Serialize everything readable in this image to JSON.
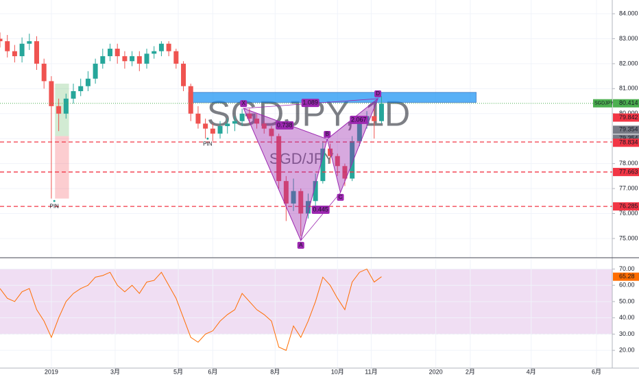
{
  "chart_data": [
    {
      "type": "candlestick",
      "title": "SGDJPY, 1D",
      "subtitle": "SGD/JPY",
      "symbol": "SGDJPY",
      "x": [
        -7,
        -6,
        -5,
        -4,
        -3,
        -2,
        -1,
        0,
        1,
        2,
        3,
        4,
        5,
        6,
        7,
        8,
        9,
        10,
        11,
        12,
        13,
        14,
        15,
        16,
        17,
        18,
        19,
        20,
        21,
        22,
        23,
        24,
        25,
        26,
        27,
        28,
        29,
        30,
        31,
        32,
        33,
        34,
        35,
        36,
        37,
        38,
        39,
        40,
        41,
        42,
        43,
        44,
        45
      ],
      "open": [
        83.0,
        82.9,
        82.5,
        82.3,
        82.8,
        82.9,
        82.0,
        81.3,
        80.3,
        80.0,
        80.6,
        80.9,
        81.1,
        81.4,
        82.0,
        82.3,
        82.6,
        82.3,
        82.1,
        82.3,
        82.0,
        82.4,
        82.5,
        82.8,
        82.5,
        82.0,
        81.1,
        80.0,
        79.6,
        79.4,
        79.2,
        79.5,
        79.6,
        79.7,
        80.0,
        79.8,
        79.6,
        79.4,
        79.1,
        77.3,
        76.4,
        76.9,
        76.0,
        76.5,
        77.3,
        78.6,
        78.3,
        77.9,
        77.4,
        78.9,
        79.6,
        79.9,
        79.7
      ],
      "high": [
        83.25,
        83.15,
        82.75,
        83.05,
        83.2,
        83.1,
        82.2,
        81.5,
        80.6,
        80.8,
        81.2,
        81.4,
        81.7,
        82.2,
        82.6,
        82.8,
        82.8,
        82.5,
        82.5,
        82.5,
        82.6,
        82.7,
        82.9,
        82.9,
        82.6,
        82.1,
        81.2,
        80.3,
        79.8,
        79.6,
        79.7,
        79.8,
        79.9,
        80.2,
        80.2,
        80.0,
        79.7,
        79.5,
        79.2,
        77.5,
        77.4,
        77.0,
        76.8,
        77.6,
        78.9,
        78.8,
        78.4,
        78.0,
        79.1,
        79.8,
        80.1,
        80.2,
        80.7
      ],
      "low": [
        82.65,
        82.25,
        82.05,
        82.05,
        82.55,
        81.75,
        81.0,
        76.6,
        79.3,
        79.8,
        80.4,
        80.7,
        80.9,
        81.2,
        81.8,
        82.1,
        82.0,
        81.8,
        81.9,
        81.7,
        81.8,
        82.2,
        82.3,
        82.3,
        81.8,
        80.9,
        79.7,
        79.4,
        79.0,
        78.9,
        79.0,
        79.2,
        79.3,
        79.5,
        79.6,
        79.4,
        79.2,
        78.8,
        77.0,
        75.7,
        76.1,
        75.1,
        75.8,
        76.3,
        77.2,
        78.0,
        77.5,
        77.1,
        77.3,
        78.7,
        79.4,
        79.0,
        79.6
      ],
      "close": [
        82.9,
        82.5,
        82.3,
        82.8,
        82.9,
        82.0,
        81.3,
        80.3,
        80.0,
        80.6,
        80.9,
        81.1,
        81.4,
        82.0,
        82.3,
        82.6,
        82.3,
        82.1,
        82.3,
        82.0,
        82.4,
        82.5,
        82.8,
        82.5,
        82.0,
        81.1,
        80.0,
        79.6,
        79.4,
        79.2,
        79.5,
        79.6,
        79.7,
        80.0,
        79.8,
        79.6,
        79.4,
        79.1,
        77.3,
        76.4,
        76.9,
        76.0,
        76.5,
        77.3,
        78.6,
        78.3,
        77.9,
        77.4,
        78.9,
        79.6,
        79.9,
        79.7,
        80.4
      ],
      "up_color": "#26a69a",
      "down_color": "#ef5350",
      "xlim": [
        -7,
        76.17
      ],
      "ylim": [
        74.23,
        84.55
      ],
      "xticks": [
        {
          "value": 0,
          "label": "2019"
        },
        {
          "value": 8.7,
          "label": "3月"
        },
        {
          "value": 17.3,
          "label": "5月"
        },
        {
          "value": 22,
          "label": "6月"
        },
        {
          "value": 30.5,
          "label": "8月"
        },
        {
          "value": 39,
          "label": "10月"
        },
        {
          "value": 43.6,
          "label": "11月"
        },
        {
          "value": 52.4,
          "label": "2020"
        },
        {
          "value": 57.1,
          "label": "2月"
        },
        {
          "value": 65.4,
          "label": "4月"
        },
        {
          "value": 74.3,
          "label": "6月"
        }
      ],
      "yticks": [
        {
          "value": 75,
          "label": "75.000"
        },
        {
          "value": 76,
          "label": "76.000"
        },
        {
          "value": 77,
          "label": "77.000"
        },
        {
          "value": 78,
          "label": "78.000"
        },
        {
          "value": 79,
          "label": "79.000"
        },
        {
          "value": 80,
          "label": "80.000"
        },
        {
          "value": 81,
          "label": "81.000"
        },
        {
          "value": 82,
          "label": "82.000"
        },
        {
          "value": 83,
          "label": "83.000"
        },
        {
          "value": 84,
          "label": "84.000"
        }
      ],
      "grid": true,
      "last_price": {
        "value": 80.414,
        "color": "#4caf50"
      },
      "levels": [
        {
          "value": 78.866,
          "color": "#f23645"
        },
        {
          "value": 77.663,
          "color": "#f23645"
        },
        {
          "value": 76.285,
          "color": "#f23645"
        }
      ],
      "price_labels": [
        {
          "value": 79.842,
          "color": "#f23645"
        },
        {
          "value": 79.354,
          "color": "#787b86"
        },
        {
          "value": 79.354,
          "color": "#787b86"
        },
        {
          "value": 78.834,
          "color": "#f23645"
        }
      ],
      "zone": {
        "x": [
          18.7,
          57.9
        ],
        "y": [
          80.45,
          80.85
        ],
        "color": "#2196f3"
      },
      "boxes": [
        {
          "x": [
            0.5,
            2.4
          ],
          "y": [
            79.1,
            81.2
          ],
          "color": "#4caf50"
        },
        {
          "x": [
            0.5,
            2.4
          ],
          "y": [
            76.6,
            79.1
          ],
          "color": "#f23645"
        }
      ],
      "markers": [
        {
          "label": "PIN",
          "x": 0.4,
          "y": 76.5
        },
        {
          "label": "PIN",
          "x": 21.3,
          "y": 79.0
        }
      ],
      "pattern": {
        "color": "#9c27b0",
        "points": [
          {
            "label": "X",
            "x": 26.2,
            "y": 80.21
          },
          {
            "label": "A",
            "x": 34.0,
            "y": 74.92
          },
          {
            "label": "B",
            "x": 37.6,
            "y": 78.98
          },
          {
            "label": "C",
            "x": 39.4,
            "y": 76.84
          },
          {
            "label": "D",
            "x": 44.5,
            "y": 80.6
          }
        ],
        "ratios": [
          {
            "value": 0.738,
            "x": 31.8,
            "y": 79.53
          },
          {
            "value": 0.445,
            "x": 36.7,
            "y": 76.15
          },
          {
            "value": 2.067,
            "x": 41.9,
            "y": 79.75
          },
          {
            "value": 1.089,
            "x": 35.3,
            "y": 80.43
          }
        ]
      }
    },
    {
      "type": "line",
      "series": [
        {
          "color": "#ff6d00",
          "values": [
            58,
            52,
            50,
            56,
            58,
            45,
            38,
            28,
            40,
            50,
            55,
            58,
            60,
            65,
            66,
            68,
            60,
            56,
            60,
            55,
            62,
            63,
            68,
            60,
            52,
            40,
            28,
            25,
            30,
            32,
            38,
            42,
            45,
            55,
            50,
            45,
            42,
            38,
            22,
            20,
            35,
            28,
            38,
            50,
            65,
            60,
            52,
            45,
            62,
            68,
            70,
            62,
            65.28
          ]
        }
      ],
      "ylim": [
        9.1,
        76.1
      ],
      "yticks": [
        {
          "value": 20,
          "label": "20.00"
        },
        {
          "value": 30,
          "label": "30.00"
        },
        {
          "value": 40,
          "label": "40.00"
        },
        {
          "value": 50,
          "label": "50.00"
        },
        {
          "value": 60,
          "label": "60.00"
        },
        {
          "value": 70,
          "label": "70.00"
        }
      ],
      "band": [
        30,
        70
      ],
      "band_color": "#e1bee7",
      "grid": true
    }
  ]
}
